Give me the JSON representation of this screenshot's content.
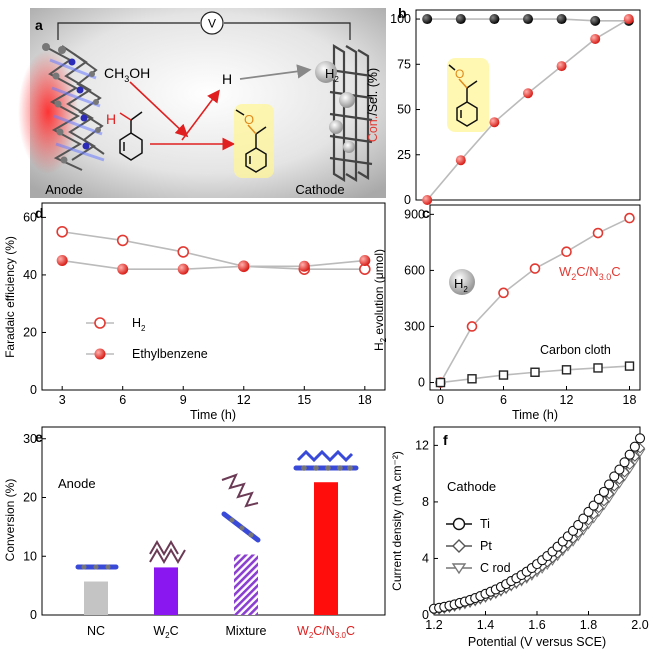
{
  "panels": {
    "a": {
      "label": "a",
      "anode": "Anode",
      "cathode": "Cathode",
      "voltmeter": "V",
      "ch3oh_main": "CH",
      "ch3oh_sub": "3",
      "ch3oh_end": "OH",
      "h_label": "H",
      "h2_main": "H",
      "h2_sub": "2",
      "reactant_h": "H",
      "product_o": "O"
    }
  },
  "chart_data": [
    {
      "id": "b",
      "label": "b",
      "type": "line",
      "x": [
        0,
        3,
        6,
        9,
        12,
        15,
        18
      ],
      "series": [
        {
          "name": "Sel.",
          "color": "#111111",
          "values": [
            100,
            100,
            100,
            100,
            100,
            99,
            99
          ]
        },
        {
          "name": "Con.",
          "color": "#e23a33",
          "values": [
            0,
            22,
            43,
            59,
            74,
            89,
            100
          ]
        }
      ],
      "ylabel_con": "Con.",
      "ylabel_rest": "/Sel. (%)",
      "yticks": [
        "0",
        "25",
        "50",
        "75",
        "100"
      ],
      "ylim": [
        0,
        105
      ],
      "xlim": [
        -1,
        19
      ],
      "product_o": "O"
    },
    {
      "id": "c",
      "label": "c",
      "type": "line",
      "x": [
        0,
        3,
        6,
        9,
        12,
        15,
        18
      ],
      "series": [
        {
          "name": "W2C/N3.0C",
          "color": "#e23a33",
          "values": [
            0,
            300,
            480,
            610,
            700,
            800,
            880
          ]
        },
        {
          "name": "Carbon cloth",
          "color": "#222222",
          "values": [
            0,
            20,
            40,
            55,
            68,
            78,
            88
          ]
        }
      ],
      "ylabel_main": "H",
      "ylabel_sub": "2",
      "ylabel_rest": " evolution (μmol)",
      "xlabel": "Time (h)",
      "xticks": [
        "0",
        "6",
        "12",
        "18"
      ],
      "yticks": [
        "0",
        "300",
        "600",
        "900"
      ],
      "ylim": [
        -40,
        950
      ],
      "xlim": [
        -1,
        19
      ],
      "legend_w2c_a": "W",
      "legend_w2c_b": "2",
      "legend_w2c_c": "C/N",
      "legend_w2c_d": "3.0",
      "legend_w2c_e": "C",
      "legend_cc": "Carbon cloth",
      "h2_main": "H",
      "h2_sub": "2"
    },
    {
      "id": "d",
      "label": "d",
      "type": "line",
      "x": [
        3,
        6,
        9,
        12,
        15,
        18
      ],
      "series": [
        {
          "name": "H2",
          "color": "#e23a33",
          "values": [
            55,
            52,
            48,
            43,
            42,
            42
          ]
        },
        {
          "name": "Ethylbenzene",
          "color": "#e23a33",
          "values": [
            45,
            42,
            42,
            43,
            43,
            45
          ]
        }
      ],
      "ylabel": "Faradaic efficiency (%)",
      "xlabel": "Time (h)",
      "xticks": [
        "3",
        "6",
        "9",
        "12",
        "15",
        "18"
      ],
      "yticks": [
        "0",
        "20",
        "40",
        "60"
      ],
      "ylim": [
        0,
        65
      ],
      "xlim": [
        2,
        19
      ],
      "legend_h2_main": "H",
      "legend_h2_sub": "2",
      "legend_eb": "Ethylbenzene"
    },
    {
      "id": "e",
      "label": "e",
      "type": "bar",
      "categories": [
        "NC",
        "W2C",
        "Mixture",
        "W2C/N3.0C"
      ],
      "values": [
        5.7,
        8.1,
        10.3,
        22.6
      ],
      "colors": [
        "#c4c4c4",
        "#8a17f0",
        "#9b59d0",
        "#ff0d0d"
      ],
      "ylabel": "Conversion (%)",
      "yticks": [
        "0",
        "10",
        "20",
        "30"
      ],
      "ylim": [
        0,
        32
      ],
      "annotation": "Anode",
      "cat_nc": "NC",
      "cat_w2c_a": "W",
      "cat_w2c_b": "2",
      "cat_w2c_c": "C",
      "cat_mix": "Mixture",
      "cat_w2cn_a": "W",
      "cat_w2cn_b": "2",
      "cat_w2cn_c": "C/N",
      "cat_w2cn_d": "3.0",
      "cat_w2cn_e": "C"
    },
    {
      "id": "f",
      "label": "f",
      "type": "line",
      "x": [
        1.2,
        1.3,
        1.4,
        1.5,
        1.6,
        1.7,
        1.8,
        1.9,
        2.0
      ],
      "series": [
        {
          "name": "Ti",
          "color": "#111111",
          "values": [
            0.45,
            0.85,
            1.5,
            2.4,
            3.6,
            5.2,
            7.3,
            9.8,
            12.5
          ]
        },
        {
          "name": "Pt",
          "color": "#555555",
          "values": [
            0.35,
            0.75,
            1.3,
            2.1,
            3.2,
            4.7,
            6.7,
            9.1,
            11.8
          ]
        },
        {
          "name": "C rod",
          "color": "#777777",
          "values": [
            0.3,
            0.65,
            1.2,
            2.0,
            3.0,
            4.5,
            6.4,
            8.8,
            11.5
          ]
        }
      ],
      "ylabel": "Current density (mA cm⁻²)",
      "xlabel": "Potential (V versus SCE)",
      "xticks": [
        "1.2",
        "1.4",
        "1.6",
        "1.8",
        "2.0"
      ],
      "yticks": [
        "0",
        "4",
        "8",
        "12"
      ],
      "ylim": [
        0,
        13.3
      ],
      "xlim": [
        1.2,
        2.0
      ],
      "annotation": "Cathode",
      "legend_ti": "Ti",
      "legend_pt": "Pt",
      "legend_crod": "C rod"
    }
  ]
}
